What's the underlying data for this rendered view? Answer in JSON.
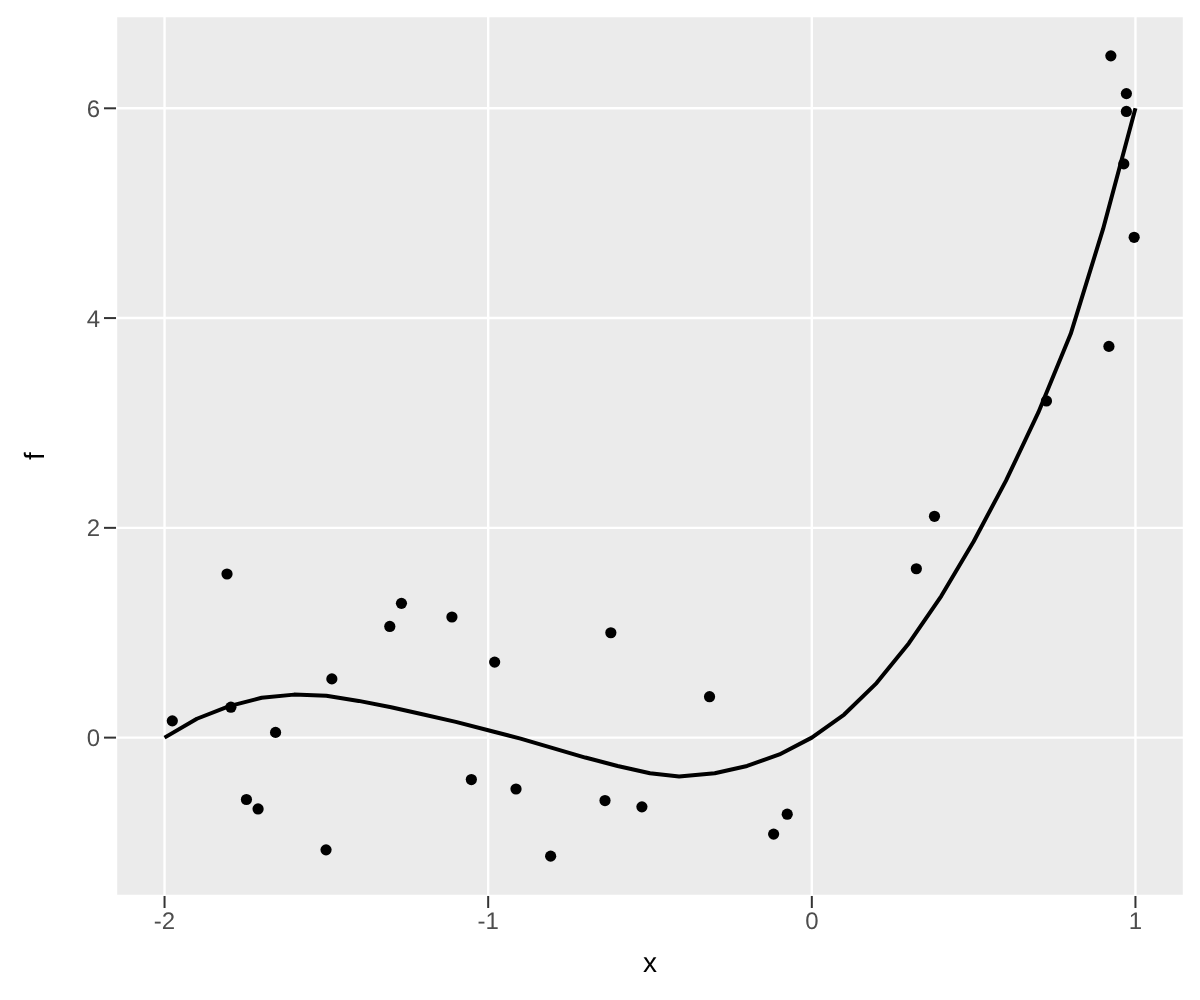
{
  "chart_data": {
    "type": "scatter",
    "xlabel": "x",
    "ylabel": "f",
    "xlim": [
      -2.15,
      1.15
    ],
    "ylim": [
      -1.51,
      6.88
    ],
    "xticks": [
      -2,
      -1,
      0,
      1
    ],
    "yticks": [
      0,
      2,
      4,
      6
    ],
    "grid": true,
    "marker": "circle",
    "series": [
      {
        "color": "#000000",
        "x": [
          -1.976,
          -1.807,
          -1.795,
          -1.747,
          -1.711,
          -1.657,
          -1.483,
          -1.501,
          -1.304,
          -1.268,
          -1.112,
          -0.98,
          -1.052,
          -0.914,
          -0.807,
          -0.621,
          -0.639,
          -0.525,
          -0.316,
          -0.118,
          -0.076,
          0.323,
          0.379,
          0.725,
          0.918,
          0.996,
          0.964,
          0.972,
          0.972,
          0.924
        ],
        "values": [
          0.16,
          1.56,
          0.29,
          -0.59,
          -0.68,
          0.05,
          0.56,
          -1.07,
          1.06,
          1.28,
          1.15,
          0.72,
          -0.4,
          -0.49,
          -1.13,
          1.0,
          -0.6,
          -0.66,
          0.39,
          -0.92,
          -0.73,
          1.61,
          2.11,
          3.21,
          3.73,
          4.77,
          5.47,
          5.97,
          6.14,
          6.5
        ]
      },
      {
        "type": "line",
        "color": "#000000",
        "marker": "none",
        "x": [
          -2,
          -1.9,
          -1.8,
          -1.7,
          -1.6,
          -1.5,
          -1.4,
          -1.3,
          -1.2,
          -1.1,
          -1,
          -0.9,
          -0.8,
          -0.7,
          -0.6,
          -0.5,
          -0.41,
          -0.3,
          -0.2,
          -0.1,
          0,
          0.1,
          0.2,
          0.3,
          0.4,
          0.5,
          0.6,
          0.7,
          0.8,
          0.9,
          1
        ],
        "values": [
          0.0,
          0.18,
          0.3,
          0.38,
          0.41,
          0.4,
          0.35,
          0.29,
          0.22,
          0.15,
          0.07,
          -0.01,
          -0.1,
          -0.19,
          -0.27,
          -0.34,
          -0.37,
          -0.34,
          -0.27,
          -0.16,
          0.0,
          0.22,
          0.52,
          0.9,
          1.35,
          1.87,
          2.45,
          3.1,
          3.85,
          4.85,
          6.0
        ]
      }
    ]
  }
}
